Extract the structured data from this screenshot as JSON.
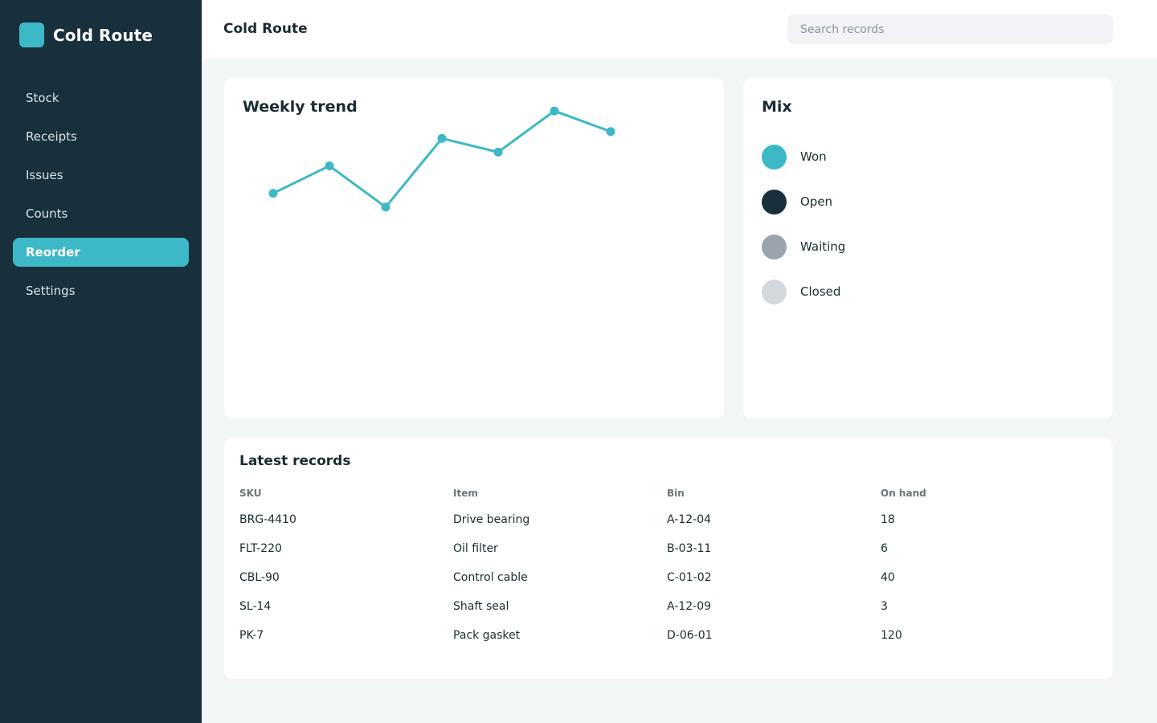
{
  "app": {
    "name": "Cold Route"
  },
  "sidebar": {
    "items": [
      {
        "label": "Stock",
        "active": false
      },
      {
        "label": "Receipts",
        "active": false
      },
      {
        "label": "Issues",
        "active": false
      },
      {
        "label": "Counts",
        "active": false
      },
      {
        "label": "Reorder",
        "active": true
      },
      {
        "label": "Settings",
        "active": false
      }
    ]
  },
  "header": {
    "title": "Cold Route",
    "search_placeholder": "Search records",
    "search_value": ""
  },
  "colors": {
    "accent": "#3db8c6",
    "sidebar_bg": "#17303b",
    "page_bg": "#f2f6f7"
  },
  "trend": {
    "title": "Weekly trend",
    "chart_data": {
      "type": "line",
      "title": "Weekly trend",
      "x": [
        1,
        2,
        3,
        4,
        5,
        6,
        7
      ],
      "series": [
        {
          "values": [
            30,
            32,
            29,
            34,
            33,
            36,
            34.5
          ]
        }
      ],
      "ylim": [
        15,
        37
      ],
      "grid": false,
      "color": "#3db8c6"
    }
  },
  "mix": {
    "title": "Mix",
    "items": [
      {
        "label": "Won",
        "color": "#3db8c6"
      },
      {
        "label": "Open",
        "color": "#17303b"
      },
      {
        "label": "Waiting",
        "color": "#9aa3ae"
      },
      {
        "label": "Closed",
        "color": "#d3d8de"
      }
    ]
  },
  "records": {
    "title": "Latest records",
    "columns": [
      "SKU",
      "Item",
      "Bin",
      "On hand"
    ],
    "rows": [
      [
        "BRG-4410",
        "Drive bearing",
        "A-12-04",
        "18"
      ],
      [
        "FLT-220",
        "Oil filter",
        "B-03-11",
        "6"
      ],
      [
        "CBL-90",
        "Control cable",
        "C-01-02",
        "40"
      ],
      [
        "SL-14",
        "Shaft seal",
        "A-12-09",
        "3"
      ],
      [
        "PK-7",
        "Pack gasket",
        "D-06-01",
        "120"
      ]
    ]
  }
}
